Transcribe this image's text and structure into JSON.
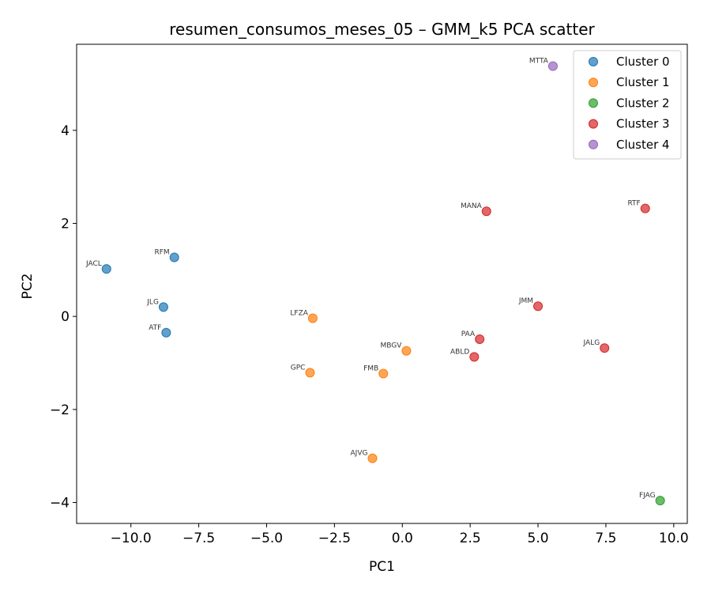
{
  "chart_data": {
    "type": "scatter",
    "title": "resumen_consumos_meses_05 – GMM_k5 PCA scatter",
    "xlabel": "PC1",
    "ylabel": "PC2",
    "xlim": [
      -12.0,
      10.5
    ],
    "ylim": [
      -4.45,
      5.85
    ],
    "xticks": [
      -10.0,
      -7.5,
      -5.0,
      -2.5,
      0.0,
      2.5,
      5.0,
      7.5,
      10.0
    ],
    "xtick_labels": [
      "−10.0",
      "−7.5",
      "−5.0",
      "−2.5",
      "0.0",
      "2.5",
      "5.0",
      "7.5",
      "10.0"
    ],
    "yticks": [
      -4,
      -2,
      0,
      2,
      4
    ],
    "ytick_labels": [
      "−4",
      "−2",
      "0",
      "2",
      "4"
    ],
    "grid": false,
    "legend_position": "top-right",
    "series": [
      {
        "name": "Cluster 0",
        "color": "#1f77b4",
        "points": [
          {
            "label": "JACL",
            "x": -10.9,
            "y": 1.02
          },
          {
            "label": "RFM",
            "x": -8.4,
            "y": 1.27
          },
          {
            "label": "JLG",
            "x": -8.8,
            "y": 0.2
          },
          {
            "label": "ATF",
            "x": -8.7,
            "y": -0.35
          }
        ]
      },
      {
        "name": "Cluster 1",
        "color": "#ff7f0e",
        "points": [
          {
            "label": "LFZA",
            "x": -3.3,
            "y": -0.04
          },
          {
            "label": "MBGV",
            "x": 0.15,
            "y": -0.74
          },
          {
            "label": "GPC",
            "x": -3.4,
            "y": -1.21
          },
          {
            "label": "FMB",
            "x": -0.7,
            "y": -1.23
          },
          {
            "label": "AJVG",
            "x": -1.1,
            "y": -3.05
          }
        ]
      },
      {
        "name": "Cluster 2",
        "color": "#2ca02c",
        "points": [
          {
            "label": "FJAG",
            "x": 9.5,
            "y": -3.96
          }
        ]
      },
      {
        "name": "Cluster 3",
        "color": "#d62728",
        "points": [
          {
            "label": "MANA",
            "x": 3.1,
            "y": 2.26
          },
          {
            "label": "RTF",
            "x": 8.95,
            "y": 2.32
          },
          {
            "label": "JMM",
            "x": 5.0,
            "y": 0.22
          },
          {
            "label": "PAA",
            "x": 2.85,
            "y": -0.49
          },
          {
            "label": "ABLD",
            "x": 2.65,
            "y": -0.87
          },
          {
            "label": "JALG",
            "x": 7.45,
            "y": -0.68
          }
        ]
      },
      {
        "name": "Cluster 4",
        "color": "#9467bd",
        "points": [
          {
            "label": "MTTA",
            "x": 5.55,
            "y": 5.38
          }
        ]
      }
    ]
  }
}
